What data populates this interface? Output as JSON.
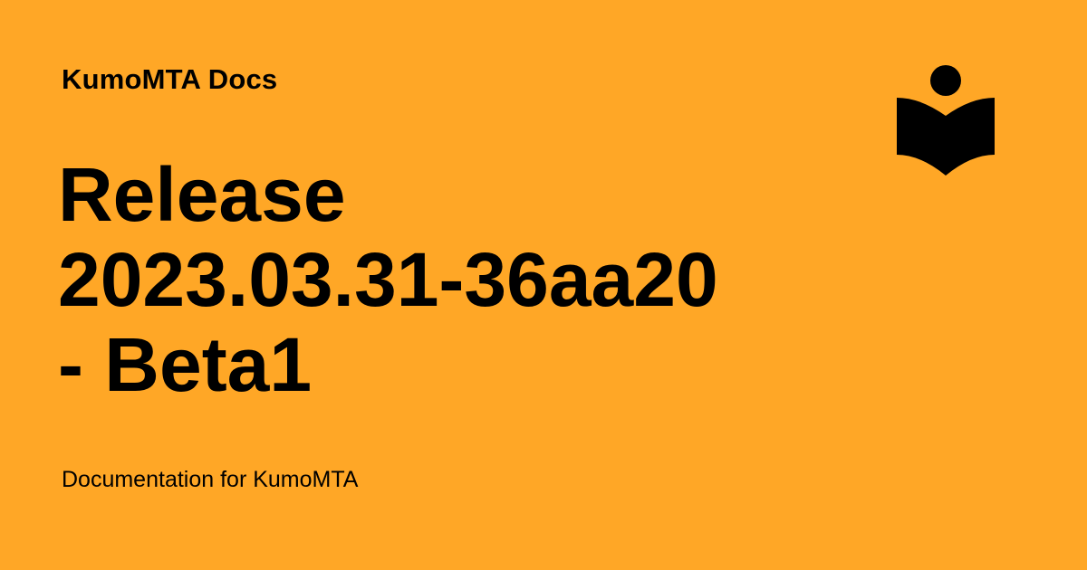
{
  "site": {
    "name": "KumoMTA Docs",
    "logo_icon": "reader-book-icon"
  },
  "page": {
    "title_lines": [
      "Release",
      "2023.03.31-36aa20",
      "- Beta1"
    ],
    "description": "Documentation for KumoMTA"
  },
  "colors": {
    "background": "#ffa726",
    "foreground": "#000000"
  }
}
